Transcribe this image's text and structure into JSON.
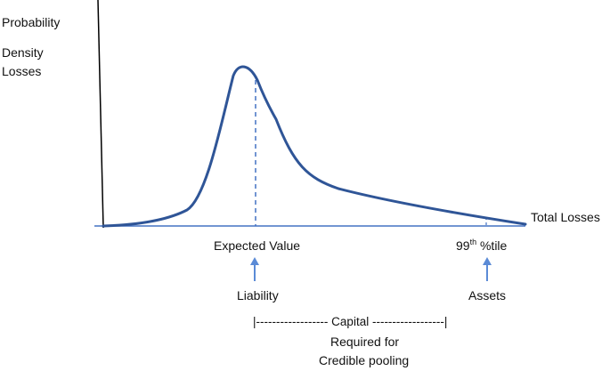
{
  "diagram": {
    "axis_labels": {
      "y_line1": "Probability",
      "y_line2": "Density",
      "y_line3": "Losses",
      "x": "Total Losses"
    },
    "markers": {
      "expected_value": "Expected Value",
      "percentile_number": "99",
      "percentile_sup": "th",
      "percentile_suffix": " %tile"
    },
    "arrow_labels": {
      "liability": "Liability",
      "assets": "Assets"
    },
    "capital_bracket": {
      "label": "|------------------ Capital ------------------|",
      "line2": "Required for",
      "line3": "Credible pooling"
    },
    "colors": {
      "curve": "#2f5597",
      "axis_x": "#4472c4",
      "axis_y": "#000000",
      "arrow": "#5b8bd6",
      "text": "#111111"
    }
  }
}
